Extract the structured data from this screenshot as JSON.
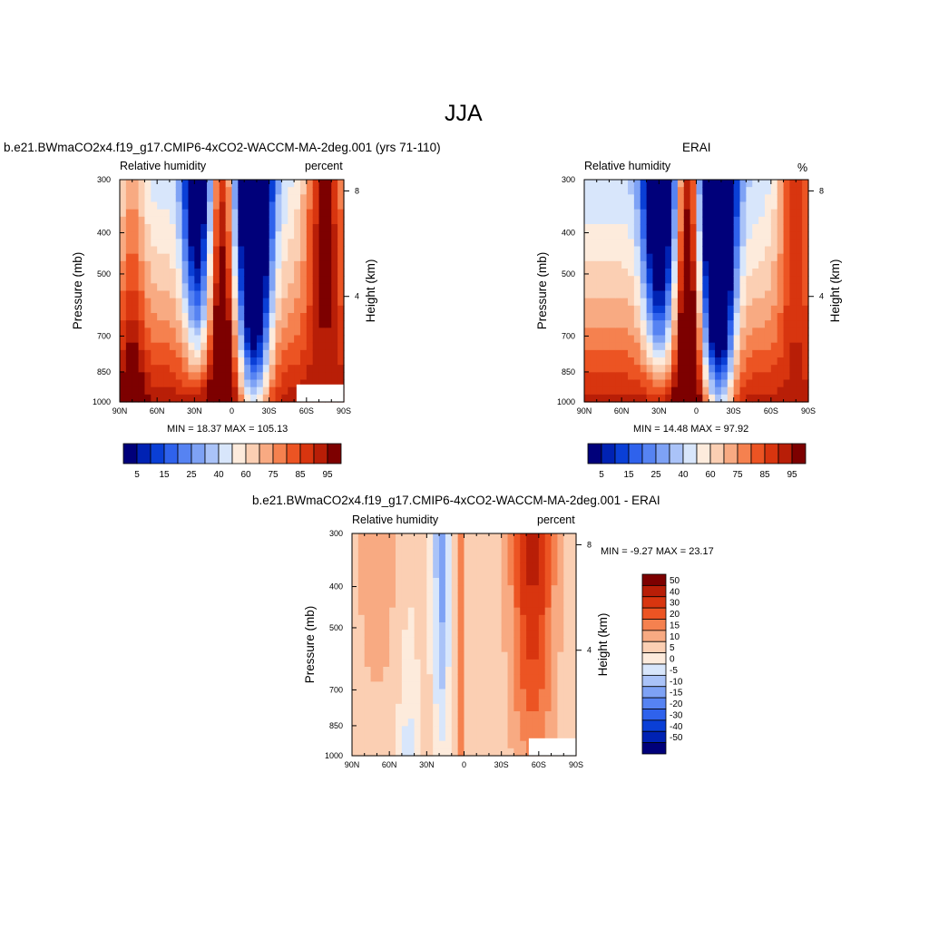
{
  "page": {
    "title": "JJA"
  },
  "colors": {
    "rh_scale": [
      "#00007a",
      "#0022b3",
      "#0a3fd6",
      "#2f62ec",
      "#5683f2",
      "#7ea2f5",
      "#aac3f8",
      "#d8e6fb",
      "#fdebdc",
      "#fbcfb3",
      "#f8aa82",
      "#f5814f",
      "#ec5423",
      "#d8350f",
      "#b81e07",
      "#7d0000"
    ],
    "diff_scale": [
      "#00007a",
      "#0022b3",
      "#0a3fd6",
      "#2f62ec",
      "#5683f2",
      "#7ea2f5",
      "#aac3f8",
      "#d8e6fb",
      "#fdebdc",
      "#fbcfb3",
      "#f8aa82",
      "#f5814f",
      "#ec5423",
      "#d8350f",
      "#b81e07",
      "#7d0000"
    ]
  },
  "chart_data": [
    {
      "type": "heatmap",
      "id": "model",
      "title": "b.e21.BWmaCO2x4.f19_g17.CMIP6-4xCO2-WACCM-MA-2deg.001 (yrs 71-110)",
      "left_label": "Relative humidity",
      "right_label": "percent",
      "xlabel": "",
      "ylabel": "Pressure (mb)",
      "y2label": "Height (km)",
      "x_ticks": [
        "90N",
        "60N",
        "30N",
        "0",
        "30S",
        "60S",
        "90S"
      ],
      "y_ticks": [
        300,
        400,
        500,
        700,
        850,
        1000
      ],
      "y2_ticks": [
        8,
        4
      ],
      "xlim": [
        90,
        -90
      ],
      "ylim": [
        1000,
        300
      ],
      "min_text": "MIN =  18.37  MAX = 105.13",
      "min": 18.37,
      "max": 105.13,
      "colorbar_labels": [
        "5",
        "15",
        "25",
        "40",
        "60",
        "75",
        "85",
        "95"
      ],
      "colorbar_levels": [
        5,
        10,
        15,
        20,
        25,
        30,
        40,
        50,
        60,
        70,
        75,
        80,
        85,
        90,
        95
      ]
    },
    {
      "type": "heatmap",
      "id": "obs",
      "title": "ERAI",
      "left_label": "Relative humidity",
      "right_label": "%",
      "xlabel": "",
      "ylabel": "Pressure (mb)",
      "y2label": "Height (km)",
      "x_ticks": [
        "90N",
        "60N",
        "30N",
        "0",
        "30S",
        "60S",
        "90S"
      ],
      "y_ticks": [
        300,
        400,
        500,
        700,
        850,
        1000
      ],
      "y2_ticks": [
        8,
        4
      ],
      "xlim": [
        90,
        -90
      ],
      "ylim": [
        1000,
        300
      ],
      "min_text": "MIN =  14.48  MAX =  97.92",
      "min": 14.48,
      "max": 97.92,
      "colorbar_labels": [
        "5",
        "15",
        "25",
        "40",
        "60",
        "75",
        "85",
        "95"
      ],
      "colorbar_levels": [
        5,
        10,
        15,
        20,
        25,
        30,
        40,
        50,
        60,
        70,
        75,
        80,
        85,
        90,
        95
      ]
    },
    {
      "type": "heatmap",
      "id": "diff",
      "title": "b.e21.BWmaCO2x4.f19_g17.CMIP6-4xCO2-WACCM-MA-2deg.001 - ERAI",
      "left_label": "Relative humidity",
      "right_label": "percent",
      "xlabel": "",
      "ylabel": "Pressure (mb)",
      "y2label": "Height (km)",
      "x_ticks": [
        "90N",
        "60N",
        "30N",
        "0",
        "30S",
        "60S",
        "90S"
      ],
      "y_ticks": [
        300,
        400,
        500,
        700,
        850,
        1000
      ],
      "y2_ticks": [
        8,
        4
      ],
      "xlim": [
        90,
        -90
      ],
      "ylim": [
        1000,
        300
      ],
      "min_text": "MIN = -9.27  MAX =  23.17",
      "min": -9.27,
      "max": 23.17,
      "colorbar_labels": [
        "50",
        "40",
        "30",
        "20",
        "15",
        "10",
        "5",
        "0",
        "-5",
        "-10",
        "-15",
        "-20",
        "-30",
        "-40",
        "-50"
      ],
      "colorbar_levels": [
        50,
        40,
        30,
        20,
        15,
        10,
        5,
        0,
        -5,
        -10,
        -15,
        -20,
        -30,
        -40,
        -50
      ]
    }
  ]
}
